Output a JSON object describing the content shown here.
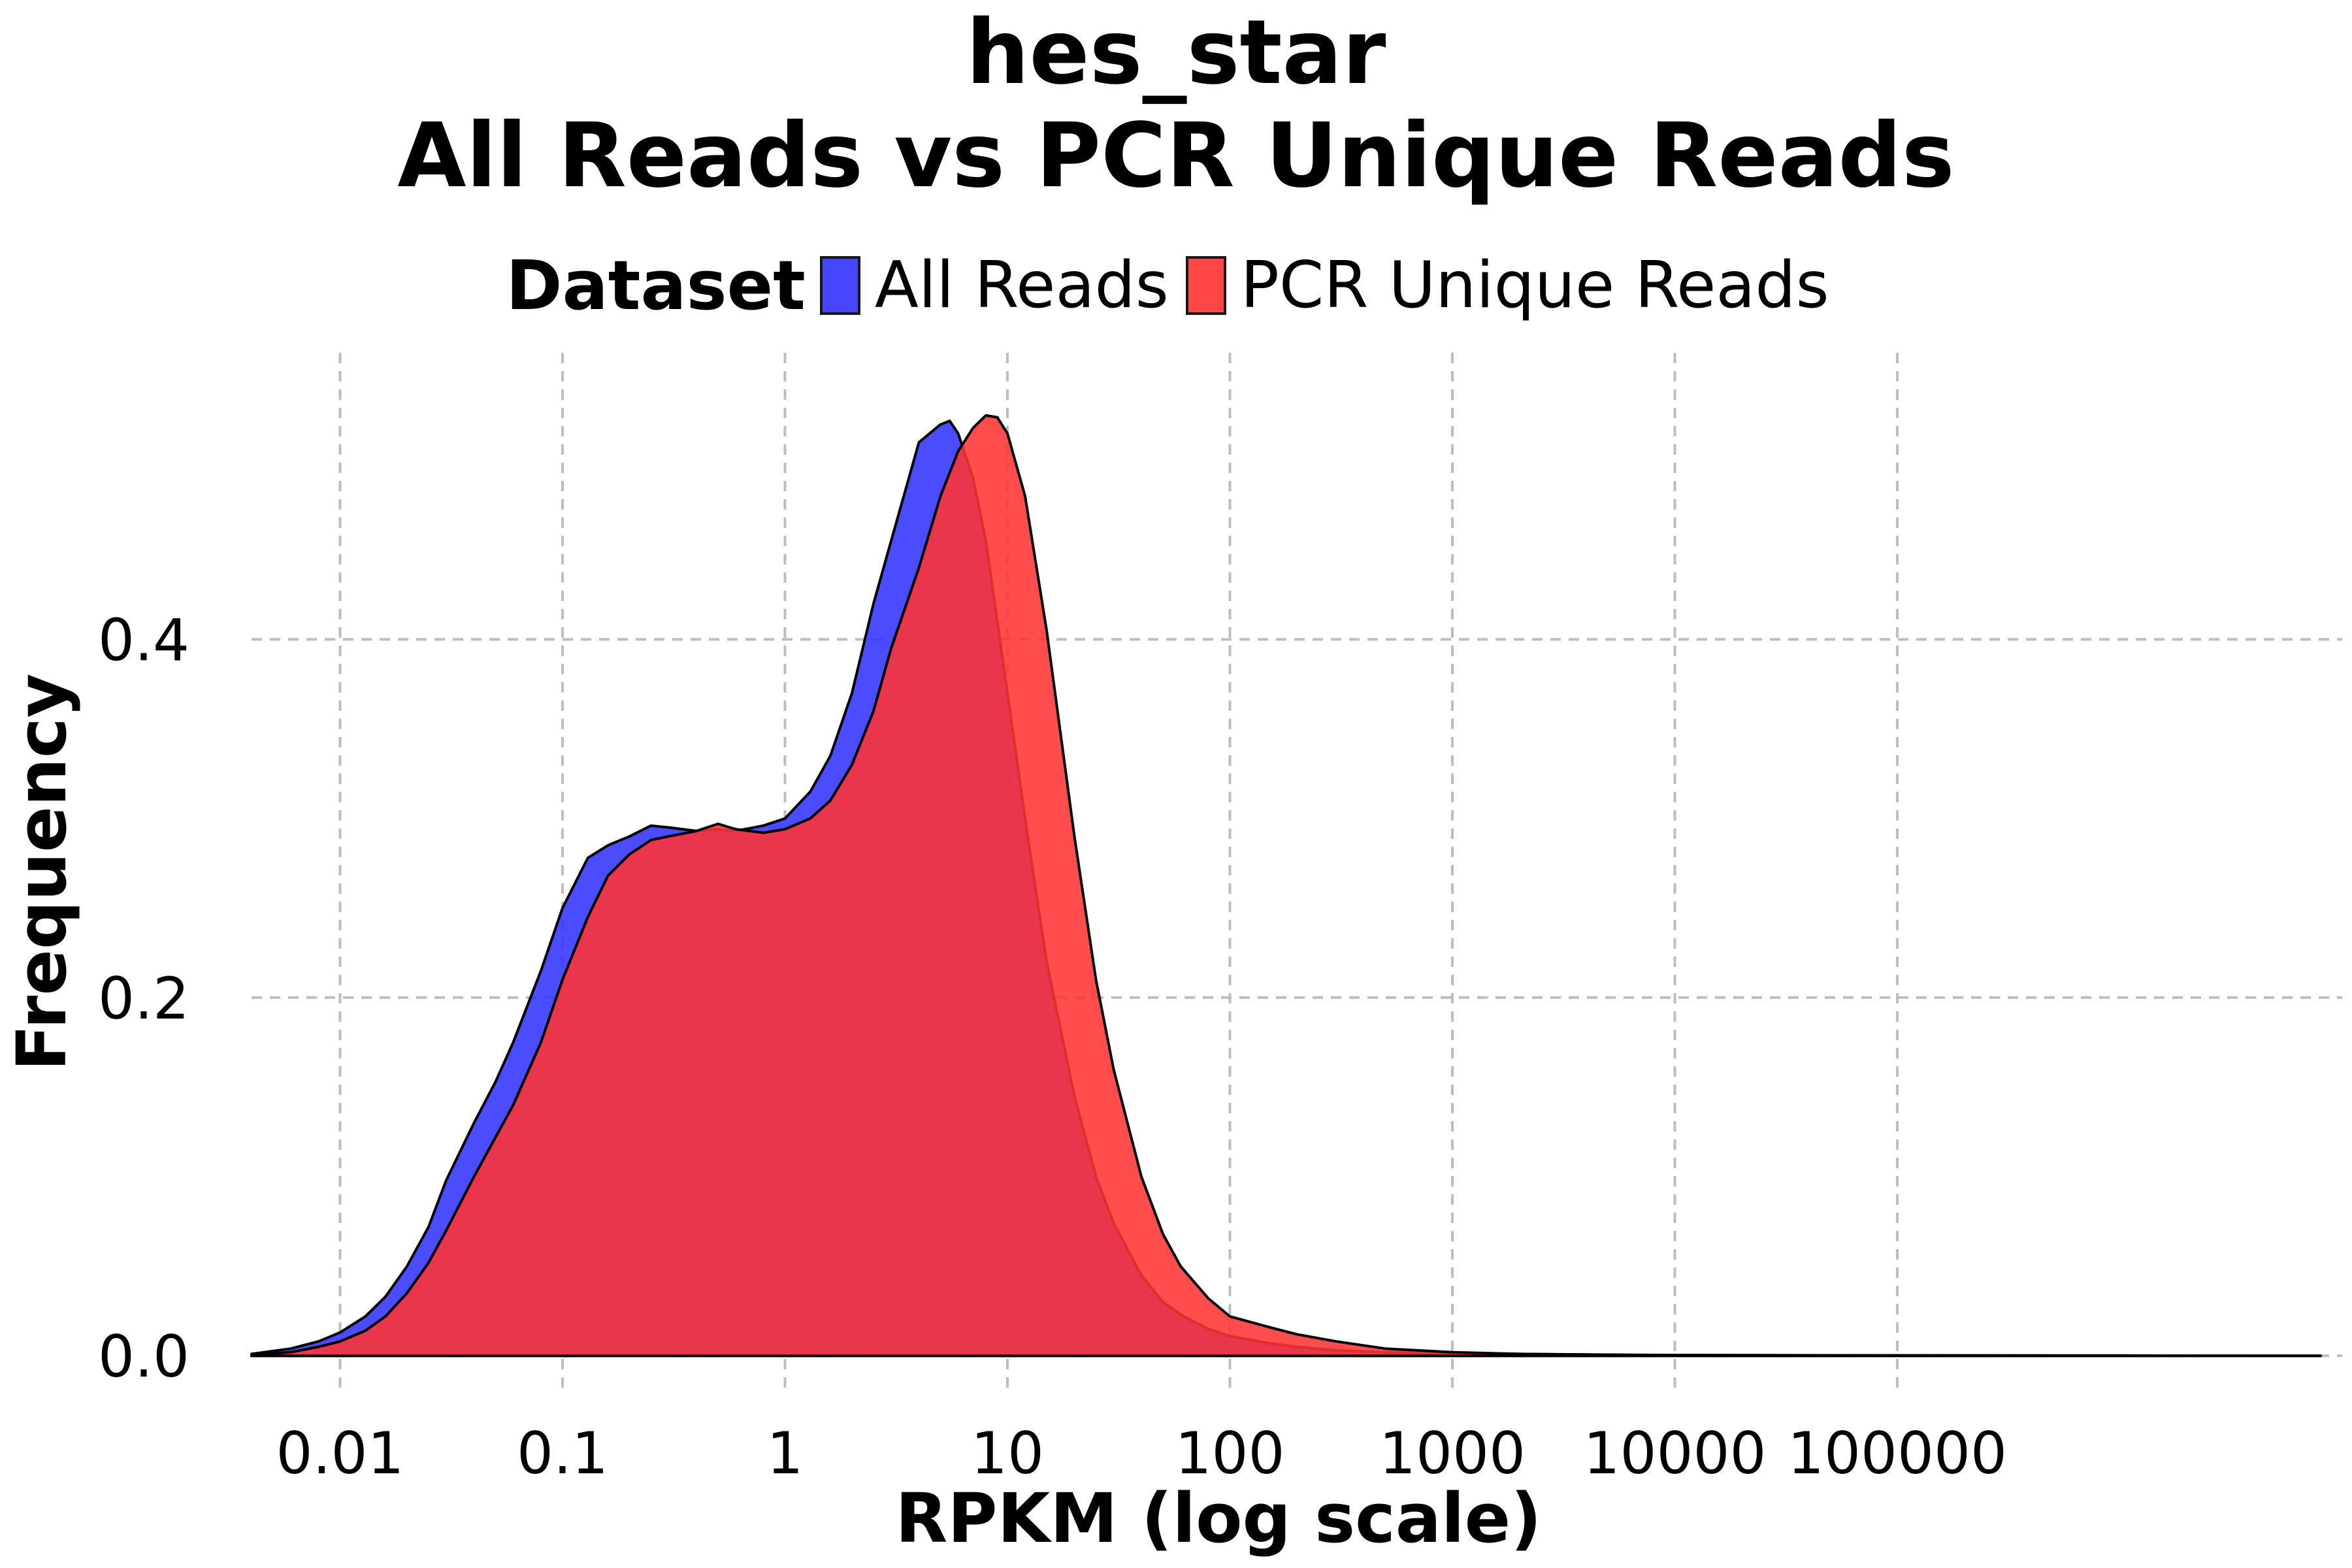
{
  "chart_data": {
    "type": "area",
    "title": "hes_star",
    "subtitle": "All Reads vs PCR Unique Reads",
    "xlabel": "RPKM (log scale)",
    "ylabel": "Frequency",
    "x_scale": "log10",
    "xlim": [
      0.004,
      10000000
    ],
    "ylim": [
      -0.02,
      0.56
    ],
    "x_ticks": [
      {
        "value": 0.01,
        "label": "0.01"
      },
      {
        "value": 0.1,
        "label": "0.1"
      },
      {
        "value": 1,
        "label": "1"
      },
      {
        "value": 10,
        "label": "10"
      },
      {
        "value": 100,
        "label": "100"
      },
      {
        "value": 1000,
        "label": "1000"
      },
      {
        "value": 10000,
        "label": "10000"
      },
      {
        "value": 100000,
        "label": "100000"
      }
    ],
    "y_ticks": [
      {
        "value": 0.0,
        "label": "0.0"
      },
      {
        "value": 0.2,
        "label": "0.2"
      },
      {
        "value": 0.4,
        "label": "0.4"
      }
    ],
    "grid": true,
    "legend": {
      "title": "Dataset",
      "position": "top"
    },
    "series": [
      {
        "name": "All Reads",
        "color": "#3333ff",
        "x": [
          0.004,
          0.006,
          0.008,
          0.01,
          0.013,
          0.016,
          0.02,
          0.025,
          0.03,
          0.04,
          0.05,
          0.06,
          0.08,
          0.1,
          0.13,
          0.16,
          0.2,
          0.25,
          0.3,
          0.4,
          0.5,
          0.6,
          0.8,
          1,
          1.3,
          1.6,
          2,
          2.5,
          3,
          4,
          5,
          5.5,
          6,
          7,
          8,
          10,
          12,
          15,
          20,
          25,
          30,
          40,
          50,
          60,
          80,
          100,
          150,
          200,
          300,
          500,
          1000,
          2000,
          5000,
          10000,
          100000,
          1000000,
          8000000
        ],
        "y": [
          0.001,
          0.004,
          0.008,
          0.013,
          0.022,
          0.033,
          0.05,
          0.072,
          0.098,
          0.13,
          0.153,
          0.175,
          0.215,
          0.25,
          0.278,
          0.285,
          0.29,
          0.296,
          0.295,
          0.293,
          0.294,
          0.293,
          0.296,
          0.3,
          0.315,
          0.335,
          0.37,
          0.42,
          0.455,
          0.51,
          0.52,
          0.522,
          0.515,
          0.49,
          0.455,
          0.37,
          0.3,
          0.22,
          0.145,
          0.1,
          0.074,
          0.045,
          0.03,
          0.023,
          0.015,
          0.011,
          0.007,
          0.005,
          0.003,
          0.002,
          0.001,
          0.001,
          0.0005,
          0.0003,
          0.0002,
          0.0001,
          0.0
        ]
      },
      {
        "name": "PCR Unique Reads",
        "color": "#ff3333",
        "x": [
          0.004,
          0.006,
          0.008,
          0.01,
          0.013,
          0.016,
          0.02,
          0.025,
          0.03,
          0.04,
          0.05,
          0.06,
          0.08,
          0.1,
          0.13,
          0.16,
          0.2,
          0.25,
          0.3,
          0.4,
          0.5,
          0.6,
          0.8,
          1,
          1.3,
          1.6,
          2,
          2.5,
          3,
          4,
          5,
          6,
          7,
          8,
          9,
          10,
          12,
          15,
          20,
          25,
          30,
          40,
          50,
          60,
          80,
          100,
          150,
          200,
          300,
          500,
          1000,
          2000,
          5000,
          10000,
          100000,
          1000000,
          8000000
        ],
        "y": [
          0.0005,
          0.002,
          0.005,
          0.008,
          0.014,
          0.022,
          0.035,
          0.052,
          0.07,
          0.1,
          0.122,
          0.14,
          0.175,
          0.21,
          0.245,
          0.268,
          0.28,
          0.288,
          0.29,
          0.293,
          0.297,
          0.294,
          0.292,
          0.294,
          0.3,
          0.31,
          0.33,
          0.36,
          0.395,
          0.44,
          0.48,
          0.505,
          0.518,
          0.525,
          0.524,
          0.515,
          0.48,
          0.405,
          0.29,
          0.21,
          0.16,
          0.1,
          0.068,
          0.05,
          0.032,
          0.022,
          0.016,
          0.012,
          0.008,
          0.004,
          0.002,
          0.001,
          0.0006,
          0.0004,
          0.0002,
          0.0001,
          0.0
        ]
      }
    ]
  }
}
